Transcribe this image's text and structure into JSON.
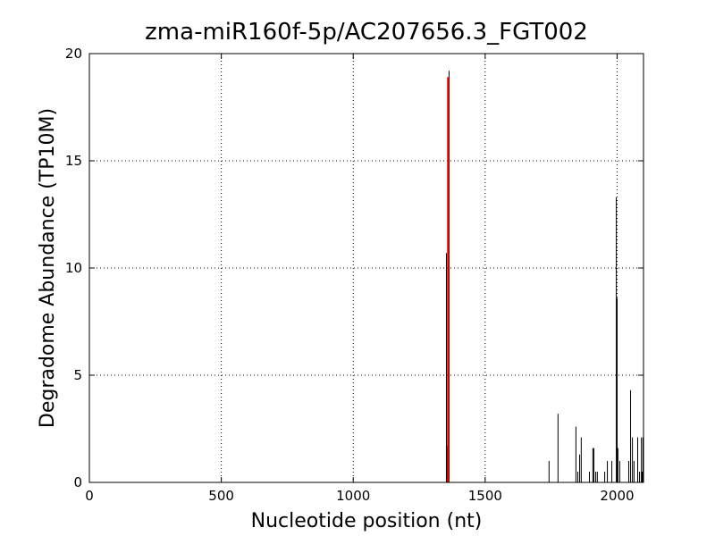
{
  "chart_data": {
    "type": "stem",
    "title": "zma-miR160f-5p/AC207656.3_FGT002",
    "x_label": "Nucleotide position (nt)",
    "y_label": "Degradome Abundance (TP10M)",
    "xlim": [
      0,
      2100
    ],
    "ylim": [
      0,
      20
    ],
    "xticks": [
      0,
      500,
      1000,
      1500,
      2000
    ],
    "yticks": [
      0,
      5,
      10,
      15,
      20
    ],
    "grid": true,
    "series": [
      {
        "color": "#000000",
        "x": [
          1353,
          1356,
          1363,
          1742,
          1776,
          1844,
          1851,
          1858,
          1864,
          1895,
          1908,
          1912,
          1919,
          1925,
          1953,
          1963,
          1980,
          1997,
          2000,
          2003,
          2010,
          2044,
          2051,
          2058,
          2064,
          2078,
          2085,
          2092,
          2095,
          2098
        ],
        "values": [
          10.7,
          1.7,
          19.2,
          1.0,
          3.2,
          2.6,
          0.5,
          1.3,
          2.1,
          0.5,
          1.6,
          1.6,
          0.5,
          0.5,
          0.5,
          1.0,
          1.0,
          13.3,
          8.6,
          1.6,
          1.0,
          1.0,
          4.3,
          2.1,
          1.0,
          2.1,
          0.5,
          2.1,
          0.5,
          2.1
        ]
      },
      {
        "color": "#ff0000",
        "x": [
          1359
        ],
        "values": [
          18.9
        ]
      }
    ]
  }
}
